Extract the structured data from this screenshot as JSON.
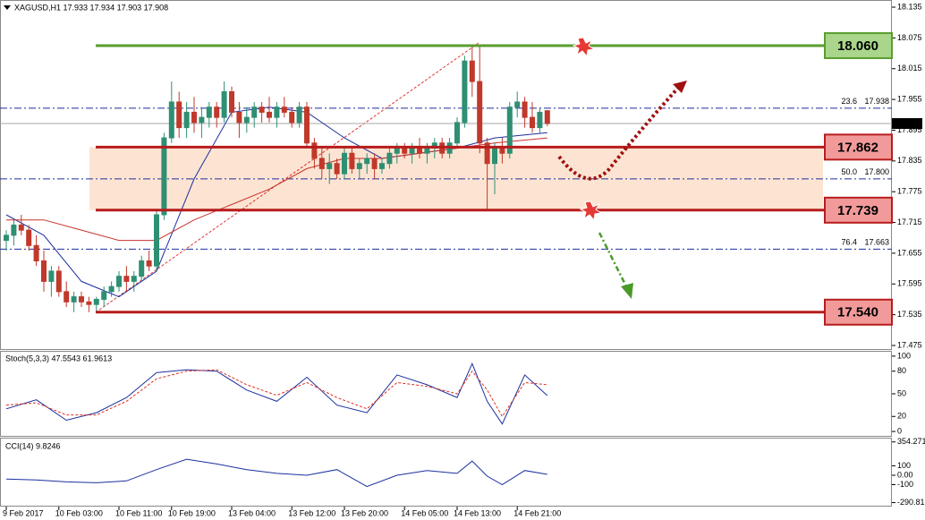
{
  "chart_data": [
    {
      "type": "candlestick",
      "title": "XAGUSD,H1  17.933 17.934 17.903 17.908",
      "ylim": [
        17.468,
        18.149
      ],
      "yticks": [
        18.135,
        18.075,
        18.015,
        17.955,
        17.895,
        17.835,
        17.775,
        17.715,
        17.655,
        17.595,
        17.535,
        17.475
      ],
      "up_color": "#2f8f73",
      "down_color": "#c0392b",
      "ohlc": [
        [
          17.68,
          17.7,
          17.66,
          17.69
        ],
        [
          17.69,
          17.72,
          17.67,
          17.71
        ],
        [
          17.71,
          17.73,
          17.69,
          17.7
        ],
        [
          17.7,
          17.71,
          17.66,
          17.67
        ],
        [
          17.67,
          17.69,
          17.63,
          17.64
        ],
        [
          17.64,
          17.66,
          17.58,
          17.6
        ],
        [
          17.6,
          17.63,
          17.57,
          17.62
        ],
        [
          17.62,
          17.63,
          17.57,
          17.58
        ],
        [
          17.58,
          17.6,
          17.55,
          17.56
        ],
        [
          17.56,
          17.58,
          17.54,
          17.57
        ],
        [
          17.57,
          17.58,
          17.55,
          17.56
        ],
        [
          17.56,
          17.57,
          17.54,
          17.555
        ],
        [
          17.555,
          17.57,
          17.54,
          17.565
        ],
        [
          17.565,
          17.59,
          17.55,
          17.58
        ],
        [
          17.58,
          17.6,
          17.57,
          17.59
        ],
        [
          17.59,
          17.62,
          17.58,
          17.61
        ],
        [
          17.61,
          17.63,
          17.58,
          17.6
        ],
        [
          17.6,
          17.62,
          17.58,
          17.61
        ],
        [
          17.61,
          17.65,
          17.6,
          17.64
        ],
        [
          17.64,
          17.66,
          17.62,
          17.63
        ],
        [
          17.63,
          17.74,
          17.62,
          17.73
        ],
        [
          17.73,
          17.89,
          17.72,
          17.88
        ],
        [
          17.88,
          17.99,
          17.87,
          17.95
        ],
        [
          17.95,
          17.97,
          17.88,
          17.9
        ],
        [
          17.9,
          17.95,
          17.88,
          17.93
        ],
        [
          17.93,
          17.96,
          17.89,
          17.91
        ],
        [
          17.91,
          17.94,
          17.88,
          17.92
        ],
        [
          17.92,
          17.95,
          17.9,
          17.94
        ],
        [
          17.94,
          17.95,
          17.9,
          17.92
        ],
        [
          17.92,
          17.99,
          17.91,
          17.97
        ],
        [
          17.97,
          17.98,
          17.92,
          17.93
        ],
        [
          17.93,
          17.95,
          17.88,
          17.91
        ],
        [
          17.91,
          17.94,
          17.89,
          17.92
        ],
        [
          17.92,
          17.95,
          17.9,
          17.94
        ],
        [
          17.94,
          17.95,
          17.91,
          17.93
        ],
        [
          17.93,
          17.96,
          17.91,
          17.92
        ],
        [
          17.92,
          17.95,
          17.9,
          17.94
        ],
        [
          17.94,
          17.96,
          17.92,
          17.93
        ],
        [
          17.93,
          17.94,
          17.9,
          17.91
        ],
        [
          17.91,
          17.95,
          17.9,
          17.94
        ],
        [
          17.94,
          17.95,
          17.86,
          17.87
        ],
        [
          17.87,
          17.88,
          17.82,
          17.84
        ],
        [
          17.84,
          17.86,
          17.8,
          17.82
        ],
        [
          17.82,
          17.85,
          17.79,
          17.83
        ],
        [
          17.83,
          17.84,
          17.8,
          17.81
        ],
        [
          17.81,
          17.86,
          17.8,
          17.85
        ],
        [
          17.85,
          17.86,
          17.81,
          17.82
        ],
        [
          17.82,
          17.84,
          17.8,
          17.83
        ],
        [
          17.83,
          17.85,
          17.81,
          17.84
        ],
        [
          17.84,
          17.85,
          17.8,
          17.82
        ],
        [
          17.82,
          17.84,
          17.81,
          17.83
        ],
        [
          17.83,
          17.86,
          17.82,
          17.85
        ],
        [
          17.85,
          17.87,
          17.83,
          17.86
        ],
        [
          17.86,
          17.87,
          17.84,
          17.85
        ],
        [
          17.85,
          17.87,
          17.83,
          17.86
        ],
        [
          17.86,
          17.88,
          17.84,
          17.85
        ],
        [
          17.85,
          17.87,
          17.83,
          17.86
        ],
        [
          17.86,
          17.88,
          17.84,
          17.87
        ],
        [
          17.87,
          17.88,
          17.84,
          17.85
        ],
        [
          17.85,
          17.88,
          17.84,
          17.87
        ],
        [
          17.87,
          17.92,
          17.86,
          17.91
        ],
        [
          17.91,
          18.04,
          17.9,
          18.03
        ],
        [
          18.03,
          18.06,
          17.96,
          17.99
        ],
        [
          17.99,
          18.06,
          17.85,
          17.87
        ],
        [
          17.87,
          17.88,
          17.74,
          17.83
        ],
        [
          17.83,
          17.87,
          17.77,
          17.86
        ],
        [
          17.86,
          17.88,
          17.83,
          17.85
        ],
        [
          17.85,
          17.95,
          17.84,
          17.94
        ],
        [
          17.94,
          17.97,
          17.92,
          17.95
        ],
        [
          17.95,
          17.96,
          17.9,
          17.92
        ],
        [
          17.92,
          17.95,
          17.89,
          17.9
        ],
        [
          17.9,
          17.94,
          17.89,
          17.93
        ],
        [
          17.933,
          17.934,
          17.903,
          17.908
        ]
      ],
      "series": [
        {
          "color": "#1c2f9e",
          "x": [
            0,
            5,
            10,
            15,
            20,
            25,
            30,
            35,
            40,
            45,
            50,
            55,
            60,
            65,
            72
          ],
          "values": [
            17.73,
            17.69,
            17.6,
            17.57,
            17.62,
            17.8,
            17.93,
            17.94,
            17.93,
            17.88,
            17.84,
            17.85,
            17.86,
            17.88,
            17.89
          ]
        },
        {
          "color": "#c8322c",
          "x": [
            0,
            5,
            10,
            15,
            20,
            25,
            30,
            35,
            40,
            45,
            50,
            55,
            60,
            65,
            72
          ],
          "values": [
            17.72,
            17.72,
            17.7,
            17.68,
            17.68,
            17.72,
            17.75,
            17.78,
            17.82,
            17.84,
            17.84,
            17.85,
            17.86,
            17.87,
            17.88
          ]
        }
      ],
      "levels": {
        "values": [
          18.06,
          17.862,
          17.739,
          17.54
        ],
        "value_labels": [
          "18.060",
          "17.862",
          "17.739",
          "17.540"
        ],
        "colors": [
          "#5a9e2f",
          "#b71c1c",
          "#b71c1c",
          "#b71c1c"
        ],
        "fills": [
          "#a9d68a",
          "#f29a9a",
          "#f29a9a",
          "#f29a9a"
        ],
        "band_color": "#fde4d2"
      },
      "fib": [
        {
          "level": 23.6,
          "price": 17.938
        },
        {
          "level": {
            "value": 50,
            "label": "50.0"
          },
          "price": {
            "value": 17.8,
            "label": "17.800"
          }
        },
        {
          "level": 76.4,
          "price": 17.663
        }
      ],
      "current_price": 17.908
    },
    {
      "type": "line",
      "title": "Stoch(5,3,3) 47.5543 61.9613",
      "ylim": [
        -7,
        107
      ],
      "yticks": [
        100,
        80,
        50,
        20,
        0
      ],
      "series": [
        {
          "color": "#1c2f9e",
          "x": [
            0,
            4,
            8,
            12,
            16,
            20,
            24,
            28,
            32,
            36,
            40,
            44,
            48,
            52,
            56,
            60,
            62,
            64,
            66,
            69,
            72
          ],
          "values": [
            30,
            42,
            15,
            25,
            45,
            78,
            82,
            80,
            55,
            40,
            72,
            35,
            25,
            75,
            62,
            45,
            90,
            40,
            10,
            75,
            47.6
          ]
        },
        {
          "color": "#e0301e",
          "dash": true,
          "x": [
            0,
            4,
            8,
            12,
            16,
            20,
            24,
            28,
            32,
            36,
            40,
            44,
            48,
            52,
            56,
            60,
            62,
            64,
            66,
            69,
            72
          ],
          "values": [
            35,
            38,
            22,
            22,
            40,
            70,
            80,
            82,
            62,
            48,
            65,
            45,
            30,
            65,
            60,
            50,
            80,
            55,
            20,
            65,
            62
          ]
        }
      ]
    },
    {
      "type": "line",
      "title": "CCI(14) 9.8246",
      "ylim": [
        -333,
        390
      ],
      "yticks": [
        354.2714,
        100,
        {
          "value": 0,
          "label": "0.00"
        },
        -100,
        -290.816
      ],
      "series": [
        {
          "color": "#1c2f9e",
          "x": [
            0,
            4,
            8,
            12,
            16,
            20,
            24,
            28,
            32,
            36,
            40,
            44,
            48,
            52,
            56,
            60,
            62,
            64,
            66,
            69,
            72
          ],
          "values": [
            -40,
            -50,
            -70,
            -80,
            -60,
            60,
            170,
            120,
            60,
            20,
            0,
            60,
            -120,
            0,
            50,
            20,
            150,
            -10,
            -100,
            50,
            9.8
          ]
        }
      ],
      "xticks": [
        {
          "value": 0,
          "label": "9 Feb 2017"
        },
        {
          "value": 7,
          "label": "10 Feb 03:00"
        },
        {
          "value": 15,
          "label": "10 Feb 11:00"
        },
        {
          "value": 22,
          "label": "10 Feb 19:00"
        },
        {
          "value": 30,
          "label": "13 Feb 04:00"
        },
        {
          "value": 38,
          "label": "13 Feb 12:00"
        },
        {
          "value": 45,
          "label": "13 Feb 20:00"
        },
        {
          "value": 53,
          "label": "14 Feb 05:00"
        },
        {
          "value": 60,
          "label": "14 Feb 13:00"
        },
        {
          "value": 68,
          "label": "14 Feb 21:00"
        }
      ]
    }
  ]
}
